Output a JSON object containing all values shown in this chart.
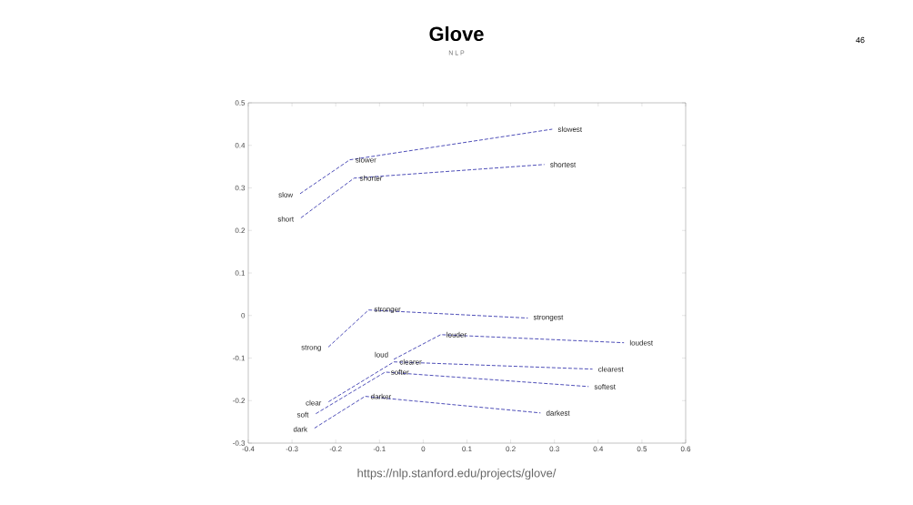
{
  "chart_data": {
    "type": "line",
    "title": "Glove",
    "subtitle": "N L P",
    "xlim": [
      -0.4,
      0.6
    ],
    "ylim": [
      -0.3,
      0.5
    ],
    "xticks": [
      -0.4,
      -0.3,
      -0.2,
      -0.1,
      0,
      0.1,
      0.2,
      0.3,
      0.4,
      0.5,
      0.6
    ],
    "yticks": [
      -0.3,
      -0.2,
      -0.1,
      0,
      0.1,
      0.2,
      0.3,
      0.4,
      0.5
    ],
    "line_style": "dashed",
    "grid": false,
    "series": [
      {
        "color": "#3b3bb0",
        "x": [
          -0.285,
          -0.168,
          0.295
        ],
        "values": [
          0.284,
          0.366,
          0.438
        ]
      },
      {
        "color": "#3b3bb0",
        "x": [
          -0.283,
          -0.158,
          0.277
        ],
        "values": [
          0.227,
          0.323,
          0.355
        ]
      },
      {
        "color": "#3b3bb0",
        "x": [
          -0.22,
          -0.125,
          0.239
        ],
        "values": [
          -0.077,
          0.013,
          -0.006
        ]
      },
      {
        "color": "#3b3bb0",
        "x": [
          -0.071,
          0.04,
          0.459
        ],
        "values": [
          -0.105,
          -0.045,
          -0.064
        ]
      },
      {
        "color": "#3b3bb0",
        "x": [
          -0.22,
          -0.067,
          0.387
        ],
        "values": [
          -0.205,
          -0.109,
          -0.126
        ]
      },
      {
        "color": "#3b3bb0",
        "x": [
          -0.249,
          -0.087,
          0.378
        ],
        "values": [
          -0.233,
          -0.133,
          -0.167
        ]
      },
      {
        "color": "#3b3bb0",
        "x": [
          -0.252,
          -0.133,
          0.268
        ],
        "values": [
          -0.267,
          -0.19,
          -0.229
        ]
      }
    ],
    "annotations": [
      {
        "text": "slow",
        "x": -0.285,
        "y": 0.284
      },
      {
        "text": "slower",
        "x": -0.168,
        "y": 0.366
      },
      {
        "text": "slowest",
        "x": 0.295,
        "y": 0.438
      },
      {
        "text": "short",
        "x": -0.283,
        "y": 0.227
      },
      {
        "text": "shorter",
        "x": -0.158,
        "y": 0.323
      },
      {
        "text": "shortest",
        "x": 0.277,
        "y": 0.355
      },
      {
        "text": "strong",
        "x": -0.22,
        "y": -0.077
      },
      {
        "text": "stronger",
        "x": -0.125,
        "y": 0.013
      },
      {
        "text": "strongest",
        "x": 0.239,
        "y": -0.006
      },
      {
        "text": "loud",
        "x": -0.071,
        "y": -0.105
      },
      {
        "text": "louder",
        "x": 0.04,
        "y": -0.045
      },
      {
        "text": "loudest",
        "x": 0.459,
        "y": -0.064
      },
      {
        "text": "clear",
        "x": -0.22,
        "y": -0.205
      },
      {
        "text": "clearer",
        "x": -0.067,
        "y": -0.109
      },
      {
        "text": "clearest",
        "x": 0.387,
        "y": -0.126
      },
      {
        "text": "soft",
        "x": -0.249,
        "y": -0.233
      },
      {
        "text": "softer",
        "x": -0.087,
        "y": -0.133
      },
      {
        "text": "softest",
        "x": 0.378,
        "y": -0.167
      },
      {
        "text": "dark",
        "x": -0.252,
        "y": -0.267
      },
      {
        "text": "darker",
        "x": -0.133,
        "y": -0.19
      },
      {
        "text": "darkest",
        "x": 0.268,
        "y": -0.229
      },
      "https://nlp.stanford.edu/projects/glove/",
      "46"
    ]
  }
}
